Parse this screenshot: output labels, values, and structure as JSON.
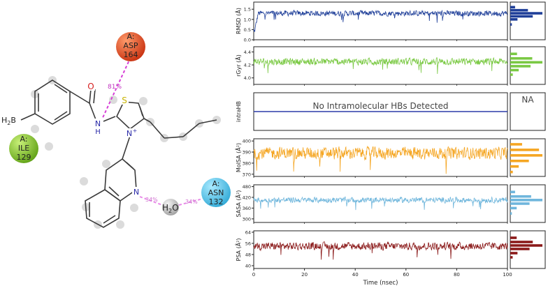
{
  "colors": {
    "rmsd": "#1f3f99",
    "rgyr": "#7ac943",
    "intrahb": "#2b3aa8",
    "molsa": "#f5a623",
    "sasa": "#6fb6dc",
    "psa": "#8b1a1a",
    "contact_line": "#d63fd6",
    "water_line": "#e88ae8"
  },
  "interaction_diagram": {
    "residues": [
      {
        "chain": "A:",
        "name": "ASP",
        "number": "164",
        "color": "#e8401c"
      },
      {
        "chain": "A:",
        "name": "ILE",
        "number": "129",
        "color": "#79c31d"
      },
      {
        "chain": "A:",
        "name": "ASN",
        "number": "132",
        "color": "#4ac6ec"
      }
    ],
    "atoms": {
      "oxygen": "O",
      "nh_n": "N",
      "nh_h": "H",
      "sulfur": "S",
      "n_plus": "N",
      "n_plus_charge": "+",
      "quin_n": "N",
      "boron": "B",
      "h2_h": "H",
      "h2_sub": "2"
    },
    "water": {
      "label": "H",
      "sub": "2",
      "tail": "O"
    },
    "percentages": {
      "asp": "81%",
      "water_n": "34%",
      "water_asn": "34%"
    }
  },
  "chart_data": [
    {
      "type": "line",
      "ylabel": "RMSD (Å)",
      "yticks": [
        "0.0",
        "0.5",
        "1.0",
        "1.5"
      ],
      "ylim": [
        0.0,
        1.85
      ],
      "xlim": [
        0,
        100
      ],
      "series": [
        {
          "values_summary": {
            "mean": 1.3,
            "noise": 0.12,
            "start": 0.5
          }
        }
      ],
      "histogram": {
        "bins": [
          0.75,
          1.0,
          1.15,
          1.3,
          1.45,
          1.6
        ],
        "counts": [
          2,
          9,
          28,
          40,
          22,
          6
        ]
      }
    },
    {
      "type": "line",
      "ylabel": "rGyr (Å)",
      "yticks": [
        "4.0",
        "4.2",
        "4.4"
      ],
      "ylim": [
        3.9,
        4.48
      ],
      "xlim": [
        0,
        100
      ],
      "series": [
        {
          "values_summary": {
            "mean": 4.25,
            "noise": 0.05
          }
        }
      ],
      "histogram": {
        "bins": [
          4.05,
          4.12,
          4.18,
          4.24,
          4.3,
          4.37
        ],
        "counts": [
          3,
          10,
          24,
          38,
          26,
          8
        ]
      }
    },
    {
      "type": "line",
      "ylabel": "intraHB",
      "annotation": "No Intramolecular HBs Detected",
      "histogram_text": "NA",
      "xlim": [
        0,
        100
      ]
    },
    {
      "type": "line",
      "ylabel": "MolSA (Å²)",
      "yticks": [
        "370",
        "380",
        "390",
        "400"
      ],
      "ylim": [
        368,
        402
      ],
      "xlim": [
        0,
        100
      ],
      "series": [
        {
          "values_summary": {
            "mean": 389,
            "noise": 5
          }
        }
      ],
      "histogram": {
        "bins": [
          372,
          377,
          382,
          387,
          392,
          397
        ],
        "counts": [
          3,
          10,
          22,
          38,
          34,
          14
        ]
      }
    },
    {
      "type": "line",
      "ylabel": "SASA (Å²)",
      "yticks": [
        "300",
        "360",
        "420",
        "480"
      ],
      "ylim": [
        280,
        490
      ],
      "xlim": [
        0,
        100
      ],
      "series": [
        {
          "values_summary": {
            "mean": 405,
            "noise": 14
          }
        }
      ],
      "histogram": {
        "bins": [
          330,
          360,
          385,
          405,
          425,
          450
        ],
        "counts": [
          2,
          8,
          24,
          40,
          26,
          6
        ]
      }
    },
    {
      "type": "line",
      "ylabel": "PSA (Å²)",
      "yticks": [
        "40",
        "48",
        "56",
        "64"
      ],
      "ylim": [
        38,
        65
      ],
      "xlim": [
        0,
        100
      ],
      "xticks": [
        "0",
        "20",
        "40",
        "60",
        "80",
        "100"
      ],
      "xlabel": "Time (nsec)",
      "series": [
        {
          "values_summary": {
            "mean": 54,
            "noise": 2.5
          }
        }
      ],
      "histogram": {
        "bins": [
          46,
          49,
          52,
          54.5,
          57,
          60
        ],
        "counts": [
          3,
          9,
          24,
          40,
          28,
          8
        ]
      }
    }
  ]
}
